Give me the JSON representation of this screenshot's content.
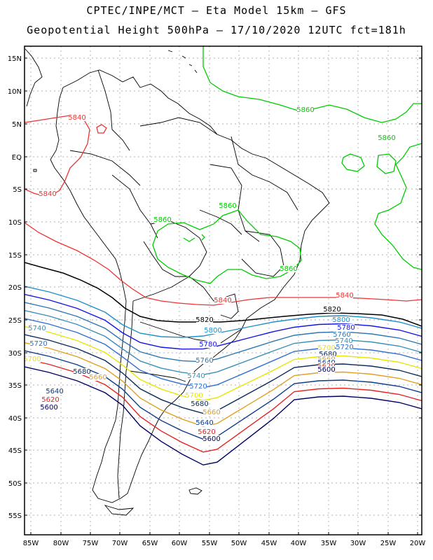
{
  "title_line1": "CPTEC/INPE/MCT  –   Eta Model 15km  –  GFS",
  "title_line2": "Geopotential Height 500hPa  –  17/10/2020 12UTC fct=181h",
  "y_ticks": [
    "15N",
    "10N",
    "5N",
    "EQ",
    "5S",
    "10S",
    "15S",
    "20S",
    "25S",
    "30S",
    "35S",
    "40S",
    "45S",
    "50S",
    "55S"
  ],
  "x_ticks": [
    "85W",
    "80W",
    "75W",
    "70W",
    "65W",
    "60W",
    "55W",
    "50W",
    "45W",
    "40W",
    "35W",
    "30W",
    "25W",
    "20W"
  ],
  "colors": {
    "5860": "#00cc00",
    "5840": "#ee3333",
    "5820": "#000000",
    "5800": "#1e90c8",
    "5780": "#1414e6",
    "5760": "#2c78b4",
    "5740": "#3a8fb8",
    "5720": "#2e6fd0",
    "5700": "#e6e600",
    "5680": "#0a2a5a",
    "5660": "#e0a020",
    "5640": "#0a3a8a",
    "5620": "#e62222",
    "5600": "#000060",
    "land": "#000000"
  },
  "contour_labels": {
    "l5860a": "5860",
    "l5860b": "5860",
    "l5860c": "5860",
    "l5860d": "5860",
    "l5860e": "5860",
    "l5840a": "5840",
    "l5840b": "5840",
    "l5840c": "5840",
    "l5840d": "5840",
    "l5820a": "5820",
    "l5820b": "5820",
    "l5800a": "5800",
    "l5800b": "5800",
    "l5780a": "5780",
    "l5780b": "5780",
    "l5760a": "5760",
    "l5760b": "5760",
    "l5740a": "5740",
    "l5740b": "5740",
    "l5740c": "5740",
    "l5720a": "5720",
    "l5720b": "5720",
    "l5720c": "5720",
    "l5700a": "5700",
    "l5700b": "5700",
    "l5700c": "5700",
    "l5680a": "5680",
    "l5680b": "5680",
    "l5680c": "5680",
    "l5660a": "5660",
    "l5660b": "5660",
    "l5660c": "5660",
    "l5640a": "5640",
    "l5640b": "5640",
    "l5640c": "5640",
    "l5620a": "5620",
    "l5620b": "5620",
    "l5620c": "5620",
    "l5600a": "5600",
    "l5600b": "5600",
    "l5600c": "5600"
  }
}
